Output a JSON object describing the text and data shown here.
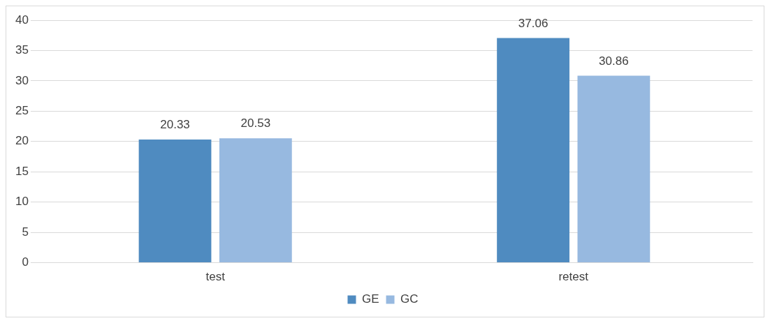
{
  "chart_data": {
    "type": "bar",
    "categories": [
      "test",
      "retest"
    ],
    "series": [
      {
        "name": "GE",
        "color": "#4f8bc0",
        "values": [
          20.33,
          37.06
        ]
      },
      {
        "name": "GC",
        "color": "#97b9e0",
        "values": [
          20.53,
          30.86
        ]
      }
    ],
    "ylim": [
      0,
      40
    ],
    "yticks": [
      0,
      5,
      10,
      15,
      20,
      25,
      30,
      35,
      40
    ],
    "grid": "y",
    "legend": "bottom",
    "data_labels": true
  }
}
